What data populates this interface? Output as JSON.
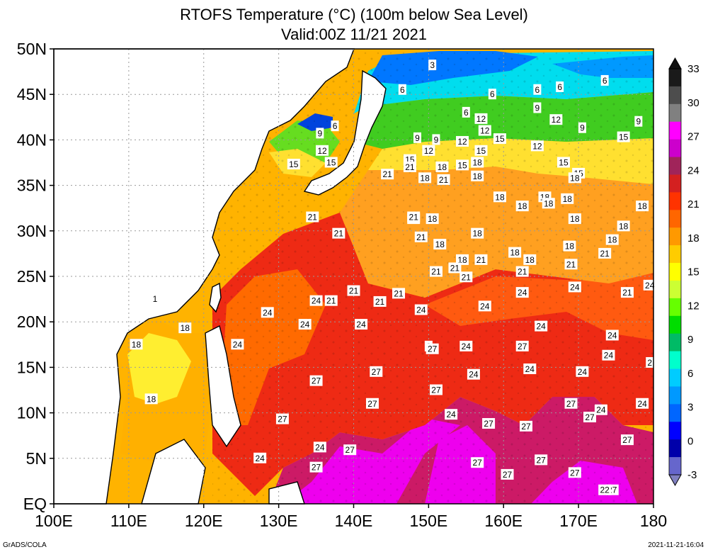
{
  "title": {
    "line1": "RTOFS Temperature (°C) (100m below Sea Level)",
    "line2": "Valid:00Z 11/21 2021"
  },
  "axes": {
    "lat_labels": [
      "50N",
      "45N",
      "40N",
      "35N",
      "30N",
      "25N",
      "20N",
      "15N",
      "10N",
      "5N",
      "EQ"
    ],
    "lon_labels": [
      "100E",
      "110E",
      "120E",
      "130E",
      "140E",
      "150E",
      "160E",
      "170E",
      "180"
    ],
    "lat_range": [
      0,
      50
    ],
    "lon_range": [
      100,
      180
    ]
  },
  "colorbar": {
    "labels": [
      "33",
      "30",
      "27",
      "24",
      "21",
      "18",
      "15",
      "12",
      "9",
      "6",
      "3",
      "0",
      "-3"
    ],
    "colors": [
      "#1a1a1a",
      "#4d4d4d",
      "#808080",
      "#ff00ff",
      "#cc00cc",
      "#a0245a",
      "#d42020",
      "#ff3300",
      "#ff6600",
      "#ff9900",
      "#ffcc00",
      "#ffff00",
      "#ccff33",
      "#66ff00",
      "#00dd00",
      "#00bb66",
      "#00ffcc",
      "#00ccff",
      "#0099ff",
      "#0066ff",
      "#0000ff",
      "#0000aa",
      "#6666cc"
    ]
  },
  "contour_labels": [
    {
      "text": "3",
      "lon": 150.5,
      "lat": 48.2
    },
    {
      "text": "6",
      "lon": 146.5,
      "lat": 45.5
    },
    {
      "text": "6",
      "lon": 158.5,
      "lat": 45.0
    },
    {
      "text": "6",
      "lon": 164.5,
      "lat": 45.5
    },
    {
      "text": "6",
      "lon": 167.5,
      "lat": 45.8
    },
    {
      "text": "6",
      "lon": 173.5,
      "lat": 46.5
    },
    {
      "text": "6",
      "lon": 137.5,
      "lat": 41.5
    },
    {
      "text": "9",
      "lon": 135.5,
      "lat": 40.7
    },
    {
      "text": "9",
      "lon": 164.5,
      "lat": 43.5
    },
    {
      "text": "9",
      "lon": 170.5,
      "lat": 41.3
    },
    {
      "text": "9",
      "lon": 178.0,
      "lat": 42.0
    },
    {
      "text": "9",
      "lon": 148.5,
      "lat": 40.2
    },
    {
      "text": "9",
      "lon": 151.0,
      "lat": 40.0
    },
    {
      "text": "6",
      "lon": 155.0,
      "lat": 43.0
    },
    {
      "text": "12",
      "lon": 157.0,
      "lat": 42.3
    },
    {
      "text": "12",
      "lon": 157.5,
      "lat": 41.0
    },
    {
      "text": "12",
      "lon": 167.0,
      "lat": 42.2
    },
    {
      "text": "12",
      "lon": 150.0,
      "lat": 38.8
    },
    {
      "text": "12",
      "lon": 154.5,
      "lat": 39.8
    },
    {
      "text": "12",
      "lon": 164.5,
      "lat": 39.3
    },
    {
      "text": "12",
      "lon": 135.8,
      "lat": 38.8
    },
    {
      "text": "15",
      "lon": 159.5,
      "lat": 40.1
    },
    {
      "text": "15",
      "lon": 157.0,
      "lat": 38.8
    },
    {
      "text": "15",
      "lon": 176.0,
      "lat": 40.3
    },
    {
      "text": "15",
      "lon": 147.5,
      "lat": 37.8
    },
    {
      "text": "15",
      "lon": 154.5,
      "lat": 37.2
    },
    {
      "text": "15",
      "lon": 168.0,
      "lat": 37.5
    },
    {
      "text": "15",
      "lon": 170.0,
      "lat": 36.3
    },
    {
      "text": "15",
      "lon": 132.0,
      "lat": 37.3
    },
    {
      "text": "15",
      "lon": 137.0,
      "lat": 37.5
    },
    {
      "text": "18",
      "lon": 156.5,
      "lat": 37.5
    },
    {
      "text": "18",
      "lon": 156.5,
      "lat": 36.0
    },
    {
      "text": "18",
      "lon": 151.8,
      "lat": 37.0
    },
    {
      "text": "18",
      "lon": 149.5,
      "lat": 35.8
    },
    {
      "text": "18",
      "lon": 169.5,
      "lat": 35.8
    },
    {
      "text": "18",
      "lon": 159.5,
      "lat": 33.7
    },
    {
      "text": "18",
      "lon": 165.5,
      "lat": 33.7
    },
    {
      "text": "18",
      "lon": 166.0,
      "lat": 33.0
    },
    {
      "text": "18",
      "lon": 168.5,
      "lat": 33.5
    },
    {
      "text": "18",
      "lon": 162.5,
      "lat": 32.7
    },
    {
      "text": "18",
      "lon": 178.5,
      "lat": 32.7
    },
    {
      "text": "18",
      "lon": 169.5,
      "lat": 31.3
    },
    {
      "text": "18",
      "lon": 176.0,
      "lat": 30.5
    },
    {
      "text": "18",
      "lon": 174.5,
      "lat": 29.0
    },
    {
      "text": "18",
      "lon": 148.0,
      "lat": 31.3
    },
    {
      "text": "18",
      "lon": 150.5,
      "lat": 31.3
    },
    {
      "text": "18",
      "lon": 156.5,
      "lat": 29.7
    },
    {
      "text": "18",
      "lon": 151.5,
      "lat": 28.5
    },
    {
      "text": "18",
      "lon": 168.8,
      "lat": 28.3
    },
    {
      "text": "18",
      "lon": 161.5,
      "lat": 27.6
    },
    {
      "text": "18",
      "lon": 163.5,
      "lat": 26.8
    },
    {
      "text": "18",
      "lon": 154.5,
      "lat": 26.8
    },
    {
      "text": "18",
      "lon": 117.5,
      "lat": 19.3
    },
    {
      "text": "18",
      "lon": 111.0,
      "lat": 17.5
    },
    {
      "text": "18",
      "lon": 113.0,
      "lat": 11.5
    },
    {
      "text": "1",
      "lon": 113.5,
      "lat": 22.5
    },
    {
      "text": "21",
      "lon": 147.5,
      "lat": 37.0
    },
    {
      "text": "21",
      "lon": 152.0,
      "lat": 35.6
    },
    {
      "text": "21",
      "lon": 144.5,
      "lat": 36.2
    },
    {
      "text": "21",
      "lon": 134.5,
      "lat": 31.5
    },
    {
      "text": "21",
      "lon": 148.0,
      "lat": 31.5
    },
    {
      "text": "21",
      "lon": 138.0,
      "lat": 29.7
    },
    {
      "text": "21",
      "lon": 149.0,
      "lat": 29.3
    },
    {
      "text": "21",
      "lon": 173.5,
      "lat": 27.5
    },
    {
      "text": "21",
      "lon": 157.0,
      "lat": 26.8
    },
    {
      "text": "21",
      "lon": 169.0,
      "lat": 26.3
    },
    {
      "text": "21",
      "lon": 151.0,
      "lat": 25.5
    },
    {
      "text": "21",
      "lon": 153.5,
      "lat": 25.9
    },
    {
      "text": "21",
      "lon": 155.0,
      "lat": 24.9
    },
    {
      "text": "21",
      "lon": 162.5,
      "lat": 25.5
    },
    {
      "text": "21",
      "lon": 140.0,
      "lat": 23.4
    },
    {
      "text": "21",
      "lon": 146.0,
      "lat": 23.1
    },
    {
      "text": "21",
      "lon": 176.5,
      "lat": 23.2
    },
    {
      "text": "21",
      "lon": 143.5,
      "lat": 22.2
    },
    {
      "text": "21",
      "lon": 137.0,
      "lat": 22.3
    },
    {
      "text": "24",
      "lon": 135.0,
      "lat": 22.3
    },
    {
      "text": "24",
      "lon": 149.0,
      "lat": 21.3
    },
    {
      "text": "24",
      "lon": 157.5,
      "lat": 21.7
    },
    {
      "text": "24",
      "lon": 162.5,
      "lat": 23.2
    },
    {
      "text": "24",
      "lon": 169.5,
      "lat": 23.8
    },
    {
      "text": "24",
      "lon": 179.5,
      "lat": 24.0
    },
    {
      "text": "24",
      "lon": 128.5,
      "lat": 21.0
    },
    {
      "text": "24",
      "lon": 133.5,
      "lat": 19.7
    },
    {
      "text": "24",
      "lon": 141.0,
      "lat": 19.7
    },
    {
      "text": "24",
      "lon": 165.0,
      "lat": 19.5
    },
    {
      "text": "24",
      "lon": 174.5,
      "lat": 18.5
    },
    {
      "text": "24",
      "lon": 124.5,
      "lat": 17.5
    },
    {
      "text": "24",
      "lon": 155.0,
      "lat": 17.3
    },
    {
      "text": "24",
      "lon": 174.0,
      "lat": 16.3
    },
    {
      "text": "24",
      "lon": 163.5,
      "lat": 14.8
    },
    {
      "text": "24",
      "lon": 170.5,
      "lat": 14.5
    },
    {
      "text": "24",
      "lon": 156.0,
      "lat": 14.2
    },
    {
      "text": "24",
      "lon": 153.0,
      "lat": 9.8
    },
    {
      "text": "24",
      "lon": 178.5,
      "lat": 11.0
    },
    {
      "text": "24",
      "lon": 173.0,
      "lat": 10.3
    },
    {
      "text": "24",
      "lon": 135.5,
      "lat": 6.2
    },
    {
      "text": "24",
      "lon": 127.5,
      "lat": 5.0
    },
    {
      "text": "2",
      "lon": 179.5,
      "lat": 15.5
    },
    {
      "text": "2",
      "lon": 150.0,
      "lat": 17.3
    },
    {
      "text": "27",
      "lon": 150.5,
      "lat": 17.0
    },
    {
      "text": "27",
      "lon": 162.5,
      "lat": 17.3
    },
    {
      "text": "27",
      "lon": 143.0,
      "lat": 14.5
    },
    {
      "text": "27",
      "lon": 135.0,
      "lat": 13.5
    },
    {
      "text": "27",
      "lon": 151.0,
      "lat": 12.5
    },
    {
      "text": "27",
      "lon": 142.5,
      "lat": 11.0
    },
    {
      "text": "27",
      "lon": 169.0,
      "lat": 11.0
    },
    {
      "text": "27",
      "lon": 130.5,
      "lat": 9.3
    },
    {
      "text": "27",
      "lon": 158.0,
      "lat": 8.8
    },
    {
      "text": "27",
      "lon": 163.0,
      "lat": 8.5
    },
    {
      "text": "27",
      "lon": 171.5,
      "lat": 9.5
    },
    {
      "text": "27",
      "lon": 176.5,
      "lat": 7.0
    },
    {
      "text": "27",
      "lon": 139.5,
      "lat": 5.9
    },
    {
      "text": "27",
      "lon": 165.0,
      "lat": 4.8
    },
    {
      "text": "27",
      "lon": 156.5,
      "lat": 4.5
    },
    {
      "text": "27",
      "lon": 135.0,
      "lat": 4.0
    },
    {
      "text": "27",
      "lon": 160.5,
      "lat": 3.2
    },
    {
      "text": "27",
      "lon": 169.5,
      "lat": 3.4
    },
    {
      "text": "27",
      "lon": 174.5,
      "lat": 1.5
    },
    {
      "text": "22",
      "lon": 173.5,
      "lat": 1.5
    }
  ],
  "footer": {
    "left": "GrADS/COLA",
    "right": "2021-11-21-16:04"
  }
}
